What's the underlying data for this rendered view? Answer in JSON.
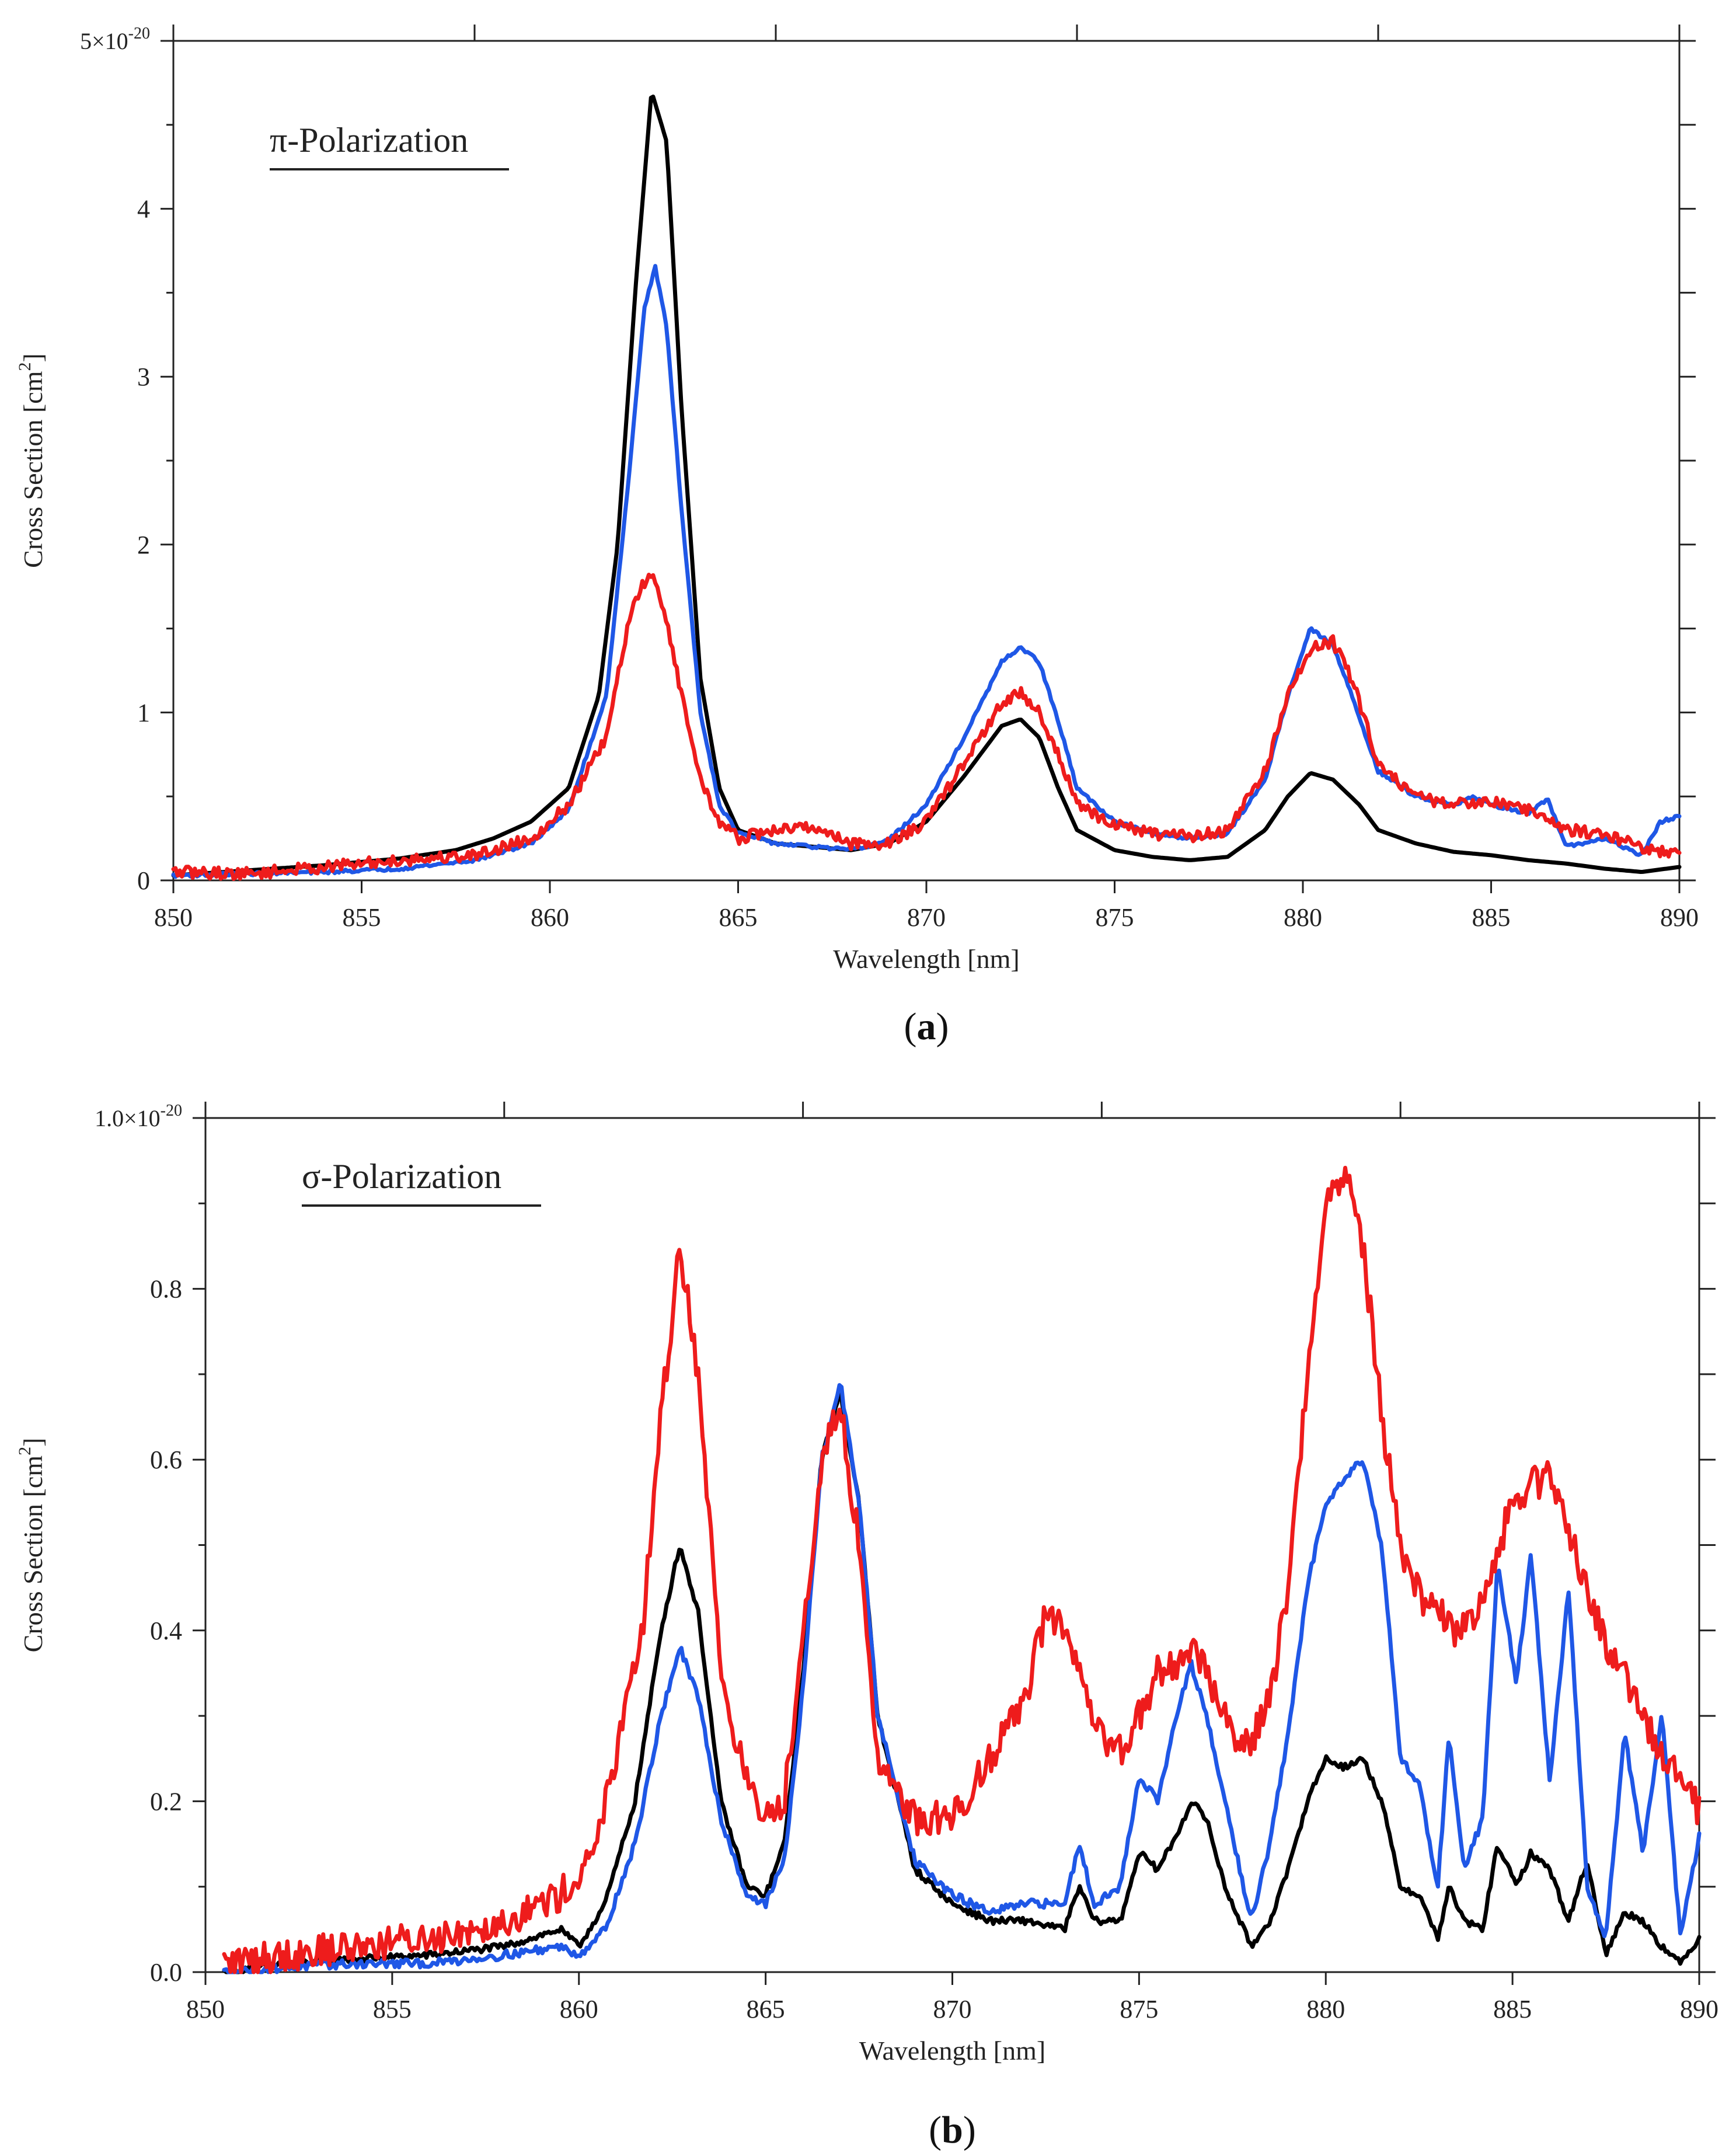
{
  "chart_data": [
    {
      "panel_id": "a",
      "panel_label": "a",
      "type": "line",
      "annotation": "π-Polarization",
      "xlabel": "Wavelength [nm]",
      "ylabel_main": "Cross Section [cm",
      "ylabel_sup": "2",
      "ylabel_end": "]",
      "xlim": [
        850,
        890
      ],
      "ylim": [
        0,
        5
      ],
      "x_ticks": [
        850,
        855,
        860,
        865,
        870,
        875,
        880,
        885,
        890
      ],
      "y_ticks": [
        {
          "value": 0,
          "label": "0"
        },
        {
          "value": 1,
          "label": "1"
        },
        {
          "value": 2,
          "label": "2"
        },
        {
          "value": 3,
          "label": "3"
        },
        {
          "value": 4,
          "label": "4"
        }
      ],
      "y_top_label": {
        "value": 5,
        "base": "5×10",
        "exp": "-20"
      },
      "series": [
        {
          "name": "black",
          "color": "#000000",
          "noise": 0.0,
          "x": [
            850,
            852,
            854,
            856,
            857.5,
            858.5,
            859.5,
            860.5,
            861.3,
            861.8,
            862.3,
            862.7,
            863.1,
            863.5,
            864,
            864.5,
            865,
            866,
            867,
            868,
            869,
            870,
            871,
            872,
            872.5,
            873,
            873.5,
            874,
            875,
            876,
            877,
            878,
            879,
            879.6,
            880.2,
            880.8,
            881.5,
            882,
            883,
            884,
            885,
            886,
            887,
            888,
            889,
            890
          ],
          "y": [
            0.03,
            0.06,
            0.09,
            0.13,
            0.18,
            0.25,
            0.35,
            0.55,
            1.1,
            2.0,
            3.6,
            4.7,
            4.4,
            2.8,
            1.2,
            0.55,
            0.3,
            0.22,
            0.2,
            0.18,
            0.22,
            0.35,
            0.62,
            0.92,
            0.96,
            0.85,
            0.55,
            0.3,
            0.18,
            0.14,
            0.12,
            0.14,
            0.3,
            0.5,
            0.64,
            0.6,
            0.45,
            0.3,
            0.22,
            0.17,
            0.15,
            0.12,
            0.1,
            0.07,
            0.05,
            0.08
          ]
        },
        {
          "name": "blue",
          "color": "#1f57e6",
          "noise": 0.01,
          "x": [
            850,
            852,
            854,
            856,
            858,
            859.5,
            860.5,
            861.5,
            862.1,
            862.5,
            862.8,
            863.1,
            863.5,
            864,
            864.5,
            865,
            866,
            867,
            868,
            869,
            870,
            871,
            872,
            872.5,
            873,
            873.5,
            874,
            875,
            876,
            877,
            878,
            879,
            879.6,
            880.2,
            880.8,
            881.3,
            882,
            883,
            884,
            884.5,
            885,
            886,
            886.5,
            887,
            888,
            889,
            889.5,
            890
          ],
          "y": [
            0.03,
            0.04,
            0.05,
            0.07,
            0.12,
            0.22,
            0.42,
            1.1,
            2.4,
            3.4,
            3.65,
            3.3,
            2.2,
            1.0,
            0.45,
            0.28,
            0.22,
            0.2,
            0.18,
            0.24,
            0.45,
            0.85,
            1.3,
            1.39,
            1.3,
            0.95,
            0.55,
            0.35,
            0.28,
            0.25,
            0.28,
            0.6,
            1.1,
            1.5,
            1.4,
            1.1,
            0.65,
            0.5,
            0.45,
            0.5,
            0.45,
            0.4,
            0.48,
            0.2,
            0.25,
            0.15,
            0.35,
            0.38
          ]
        },
        {
          "name": "red",
          "color": "#ee1c1c",
          "noise": 0.035,
          "x": [
            850,
            852,
            854,
            856,
            858,
            859.5,
            860.5,
            861.5,
            862.1,
            862.5,
            862.8,
            863.1,
            863.5,
            864,
            864.5,
            865,
            866,
            867,
            868,
            869,
            870,
            871,
            872,
            872.5,
            873,
            873.5,
            874,
            875,
            876,
            877,
            878,
            879,
            879.6,
            880.2,
            880.8,
            881.3,
            882,
            883,
            884,
            885,
            886,
            887,
            888,
            889,
            890
          ],
          "y": [
            0.05,
            0.04,
            0.08,
            0.12,
            0.15,
            0.25,
            0.45,
            0.85,
            1.55,
            1.78,
            1.8,
            1.55,
            1.1,
            0.6,
            0.35,
            0.25,
            0.3,
            0.32,
            0.22,
            0.22,
            0.35,
            0.7,
            1.05,
            1.12,
            1.0,
            0.75,
            0.45,
            0.33,
            0.28,
            0.26,
            0.3,
            0.65,
            1.1,
            1.38,
            1.42,
            1.2,
            0.7,
            0.5,
            0.45,
            0.48,
            0.42,
            0.3,
            0.28,
            0.2,
            0.15
          ]
        }
      ]
    },
    {
      "panel_id": "b",
      "panel_label": "b",
      "type": "line",
      "annotation": "σ-Polarization",
      "xlabel": "Wavelength [nm]",
      "ylabel_main": "Cross Section [cm",
      "ylabel_sup": "2",
      "ylabel_end": "]",
      "xlim": [
        850,
        890
      ],
      "ylim": [
        0,
        1.0
      ],
      "x_ticks": [
        850,
        855,
        860,
        865,
        870,
        875,
        880,
        885,
        890
      ],
      "y_ticks": [
        {
          "value": 0.0,
          "label": "0.0"
        },
        {
          "value": 0.2,
          "label": "0.2"
        },
        {
          "value": 0.4,
          "label": "0.4"
        },
        {
          "value": 0.6,
          "label": "0.6"
        },
        {
          "value": 0.8,
          "label": "0.8"
        }
      ],
      "y_top_label": {
        "value": 1.0,
        "base": "1.0×10",
        "exp": "-20"
      },
      "series": [
        {
          "name": "black",
          "color": "#000000",
          "noise": 0.004,
          "x": [
            850.5,
            852,
            854,
            856,
            858,
            859.5,
            860,
            860.7,
            861.5,
            862.2,
            862.7,
            863.2,
            863.8,
            864.5,
            865,
            865.5,
            866,
            866.5,
            867,
            867.5,
            868,
            869,
            870,
            871,
            872,
            873,
            873.4,
            873.8,
            874.5,
            875,
            875.5,
            876,
            876.4,
            876.8,
            877.3,
            878,
            878.5,
            879,
            879.5,
            880,
            880.5,
            881,
            881.5,
            882,
            882.5,
            883,
            883.3,
            883.7,
            884.2,
            884.6,
            885.1,
            885.5,
            886,
            886.5,
            887,
            887.5,
            888,
            888.5,
            889,
            889.5,
            890
          ],
          "y": [
            0.0,
            0.01,
            0.015,
            0.02,
            0.03,
            0.05,
            0.03,
            0.08,
            0.2,
            0.4,
            0.5,
            0.42,
            0.2,
            0.1,
            0.09,
            0.15,
            0.35,
            0.6,
            0.68,
            0.55,
            0.3,
            0.12,
            0.08,
            0.06,
            0.06,
            0.05,
            0.1,
            0.06,
            0.06,
            0.14,
            0.12,
            0.16,
            0.2,
            0.18,
            0.1,
            0.03,
            0.06,
            0.12,
            0.2,
            0.25,
            0.24,
            0.25,
            0.2,
            0.1,
            0.09,
            0.04,
            0.1,
            0.06,
            0.05,
            0.15,
            0.1,
            0.14,
            0.12,
            0.06,
            0.13,
            0.02,
            0.07,
            0.06,
            0.03,
            0.01,
            0.04
          ]
        },
        {
          "name": "blue",
          "color": "#1f57e6",
          "noise": 0.005,
          "x": [
            850.5,
            852,
            854,
            856,
            858,
            859.5,
            860,
            860.7,
            861.5,
            862.2,
            862.7,
            863.2,
            863.8,
            864.5,
            865,
            865.5,
            866,
            866.5,
            867,
            867.5,
            868,
            869,
            870,
            871,
            872,
            873,
            873.4,
            873.8,
            874.5,
            875,
            875.5,
            876,
            876.4,
            876.8,
            877.3,
            878,
            878.5,
            879,
            879.5,
            880,
            880.5,
            881,
            881.5,
            882,
            882.5,
            883,
            883.3,
            883.7,
            884.2,
            884.6,
            885.1,
            885.5,
            886,
            886.5,
            887,
            887.5,
            888,
            888.5,
            889,
            889.5,
            890
          ],
          "y": [
            0.0,
            0.005,
            0.01,
            0.01,
            0.02,
            0.03,
            0.02,
            0.05,
            0.15,
            0.3,
            0.38,
            0.32,
            0.18,
            0.09,
            0.08,
            0.13,
            0.33,
            0.6,
            0.69,
            0.55,
            0.3,
            0.13,
            0.09,
            0.07,
            0.08,
            0.08,
            0.15,
            0.08,
            0.1,
            0.23,
            0.2,
            0.3,
            0.36,
            0.3,
            0.2,
            0.06,
            0.15,
            0.28,
            0.45,
            0.55,
            0.58,
            0.6,
            0.5,
            0.25,
            0.22,
            0.1,
            0.28,
            0.12,
            0.18,
            0.48,
            0.34,
            0.49,
            0.22,
            0.45,
            0.1,
            0.04,
            0.28,
            0.14,
            0.3,
            0.04,
            0.16
          ]
        },
        {
          "name": "red",
          "color": "#ee1c1c",
          "noise": 0.02,
          "x": [
            850.5,
            852,
            854,
            856,
            858,
            859.5,
            860.3,
            861,
            861.7,
            862.2,
            862.7,
            863.2,
            863.8,
            864.5,
            865,
            865.5,
            866,
            866.5,
            867,
            867.5,
            868,
            869,
            870,
            871,
            872,
            872.5,
            873,
            873.5,
            874,
            874.5,
            875,
            875.5,
            876,
            876.5,
            877,
            877.5,
            878,
            878.5,
            879,
            879.5,
            880,
            880.5,
            881,
            881.5,
            882,
            882.5,
            883,
            883.5,
            884,
            884.5,
            885,
            885.5,
            886,
            886.5,
            887,
            887.5,
            888,
            888.5,
            889,
            889.5,
            890
          ],
          "y": [
            0.01,
            0.02,
            0.03,
            0.04,
            0.06,
            0.09,
            0.13,
            0.25,
            0.4,
            0.65,
            0.85,
            0.7,
            0.35,
            0.22,
            0.18,
            0.2,
            0.4,
            0.6,
            0.66,
            0.5,
            0.25,
            0.18,
            0.18,
            0.25,
            0.33,
            0.42,
            0.4,
            0.33,
            0.27,
            0.26,
            0.3,
            0.35,
            0.36,
            0.38,
            0.33,
            0.28,
            0.27,
            0.32,
            0.45,
            0.7,
            0.9,
            0.94,
            0.85,
            0.65,
            0.5,
            0.44,
            0.42,
            0.4,
            0.42,
            0.48,
            0.55,
            0.57,
            0.58,
            0.52,
            0.45,
            0.38,
            0.35,
            0.3,
            0.26,
            0.22,
            0.19
          ]
        }
      ]
    }
  ]
}
